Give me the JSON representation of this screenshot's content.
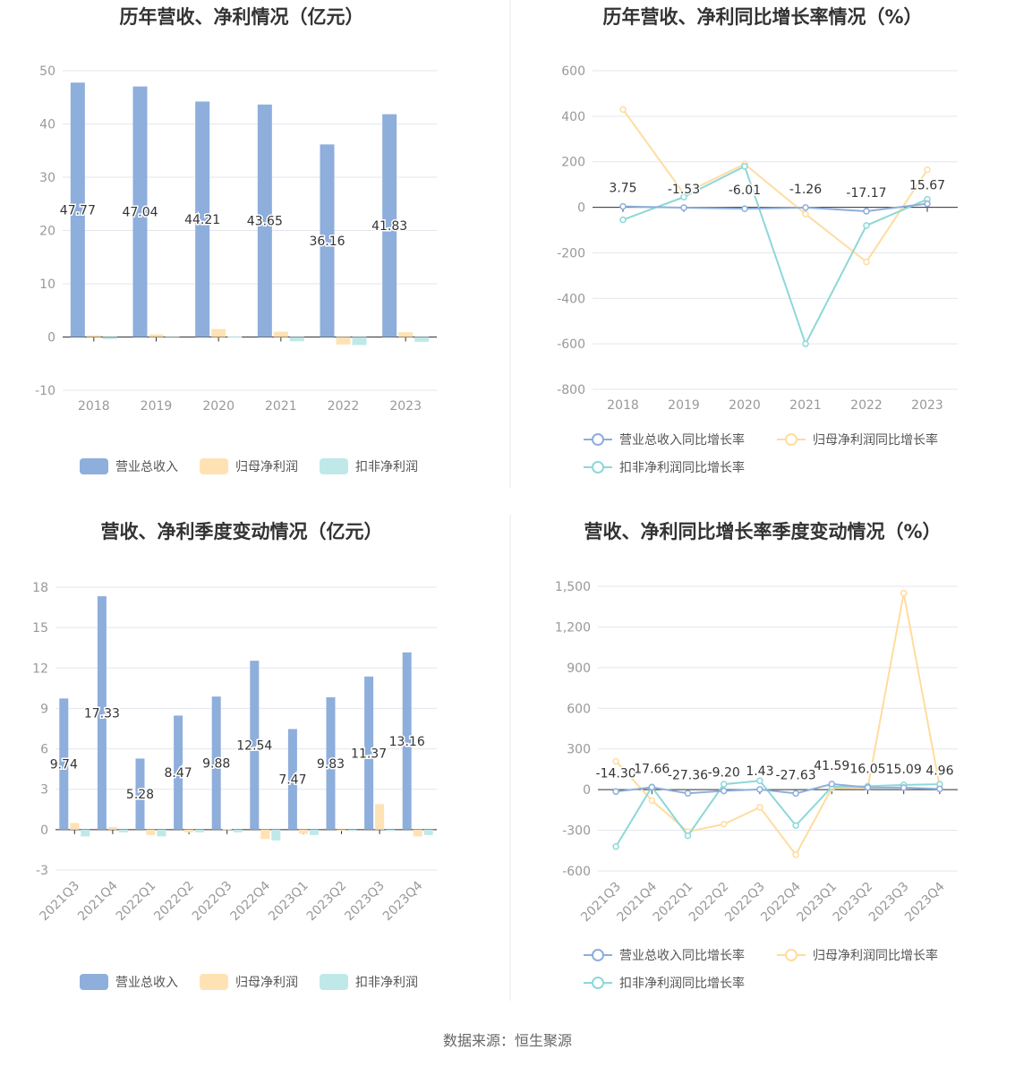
{
  "source": "数据来源：恒生聚源",
  "legend_bar": [
    "营业总收入",
    "归母净利润",
    "扣非净利润"
  ],
  "legend_line": [
    "营业总收入同比增长率",
    "归母净利润同比增长率",
    "扣非净利润同比增长率"
  ],
  "colors": {
    "revenue": "#8eaedc",
    "net_profit": "#ffe2b3",
    "deducted": "#bfe8e9",
    "line_revenue": "#8eaedc",
    "line_net": "#ffdc9f",
    "line_deducted": "#8dd8d8"
  },
  "chart_data": [
    {
      "type": "bar",
      "title": "历年营收、净利情况（亿元）",
      "categories": [
        "2018",
        "2019",
        "2020",
        "2021",
        "2022",
        "2023"
      ],
      "ylim": [
        -10,
        50
      ],
      "yticks": [
        "-10",
        "0",
        "10",
        "20",
        "30",
        "40",
        "50"
      ],
      "series": [
        {
          "name": "营业总收入",
          "values": [
            47.77,
            47.04,
            44.21,
            43.65,
            36.16,
            41.83
          ],
          "labels": [
            "47.77",
            "47.04",
            "44.21",
            "43.65",
            "36.16",
            "41.83"
          ]
        },
        {
          "name": "归母净利润",
          "values": [
            0.3,
            0.5,
            1.5,
            1.0,
            -1.4,
            0.9
          ]
        },
        {
          "name": "扣非净利润",
          "values": [
            -0.4,
            -0.1,
            0.1,
            -0.8,
            -1.5,
            -0.9
          ]
        }
      ],
      "legend": "bottom",
      "grid": true
    },
    {
      "type": "line",
      "title": "历年营收、净利同比增长率情况（%）",
      "categories": [
        "2018",
        "2019",
        "2020",
        "2021",
        "2022",
        "2023"
      ],
      "ylim": [
        -800,
        600
      ],
      "yticks": [
        "-800",
        "-600",
        "-400",
        "-200",
        "0",
        "200",
        "400",
        "600"
      ],
      "series": [
        {
          "name": "营业总收入同比增长率",
          "values": [
            3.75,
            -1.53,
            -6.01,
            -1.26,
            -17.17,
            15.67
          ],
          "labels": [
            "3.75",
            "-1.53",
            "-6.01",
            "-1.26",
            "-17.17",
            "15.67"
          ]
        },
        {
          "name": "归母净利润同比增长率",
          "values": [
            430,
            60,
            190,
            -30,
            -240,
            165
          ]
        },
        {
          "name": "扣非净利润同比增长率",
          "values": [
            -55,
            45,
            180,
            -600,
            -80,
            35
          ]
        }
      ],
      "legend": "bottom",
      "grid": true
    },
    {
      "type": "bar",
      "title": "营收、净利季度变动情况（亿元）",
      "categories": [
        "2021Q3",
        "2021Q4",
        "2022Q1",
        "2022Q2",
        "2022Q3",
        "2022Q4",
        "2023Q1",
        "2023Q2",
        "2023Q3",
        "2023Q4"
      ],
      "ylim": [
        -3,
        18
      ],
      "yticks": [
        "-3",
        "0",
        "3",
        "6",
        "9",
        "12",
        "15",
        "18"
      ],
      "series": [
        {
          "name": "营业总收入",
          "values": [
            9.74,
            17.33,
            5.28,
            8.47,
            9.88,
            12.54,
            7.47,
            9.83,
            11.37,
            13.16
          ],
          "labels": [
            "9.74",
            "17.33",
            "5.28",
            "8.47",
            "9.88",
            "12.54",
            "7.47",
            "9.83",
            "11.37",
            "13.16"
          ]
        },
        {
          "name": "归母净利润",
          "values": [
            0.5,
            0.2,
            -0.4,
            -0.2,
            0.05,
            -0.7,
            -0.3,
            -0.1,
            1.9,
            -0.5
          ]
        },
        {
          "name": "扣非净利润",
          "values": [
            -0.5,
            -0.2,
            -0.5,
            -0.2,
            -0.2,
            -0.8,
            -0.4,
            -0.1,
            -0.1,
            -0.4
          ]
        }
      ],
      "legend": "bottom",
      "grid": true
    },
    {
      "type": "line",
      "title": "营收、净利同比增长率季度变动情况（%）",
      "categories": [
        "2021Q3",
        "2021Q4",
        "2022Q1",
        "2022Q2",
        "2022Q3",
        "2022Q4",
        "2023Q1",
        "2023Q2",
        "2023Q3",
        "2023Q4"
      ],
      "ylim": [
        -600,
        1500
      ],
      "yticks": [
        "-600",
        "-300",
        "0",
        "300",
        "600",
        "900",
        "1,200",
        "1,500"
      ],
      "series": [
        {
          "name": "营业总收入同比增长率",
          "values": [
            -14.3,
            17.66,
            -27.36,
            -9.2,
            1.43,
            -27.63,
            41.59,
            16.05,
            15.09,
            4.96
          ],
          "labels": [
            "-14.30",
            "17.66",
            "-27.36",
            "-9.20",
            "1.43",
            "-27.63",
            "41.59",
            "16.05",
            "15.09",
            "4.96"
          ]
        },
        {
          "name": "归母净利润同比增长率",
          "values": [
            210,
            -80,
            -310,
            -255,
            -130,
            -480,
            10,
            15,
            1450,
            20
          ]
        },
        {
          "name": "扣非净利润同比增长率",
          "values": [
            -420,
            20,
            -340,
            40,
            65,
            -265,
            20,
            25,
            35,
            40
          ]
        }
      ],
      "legend": "bottom",
      "grid": true
    }
  ]
}
